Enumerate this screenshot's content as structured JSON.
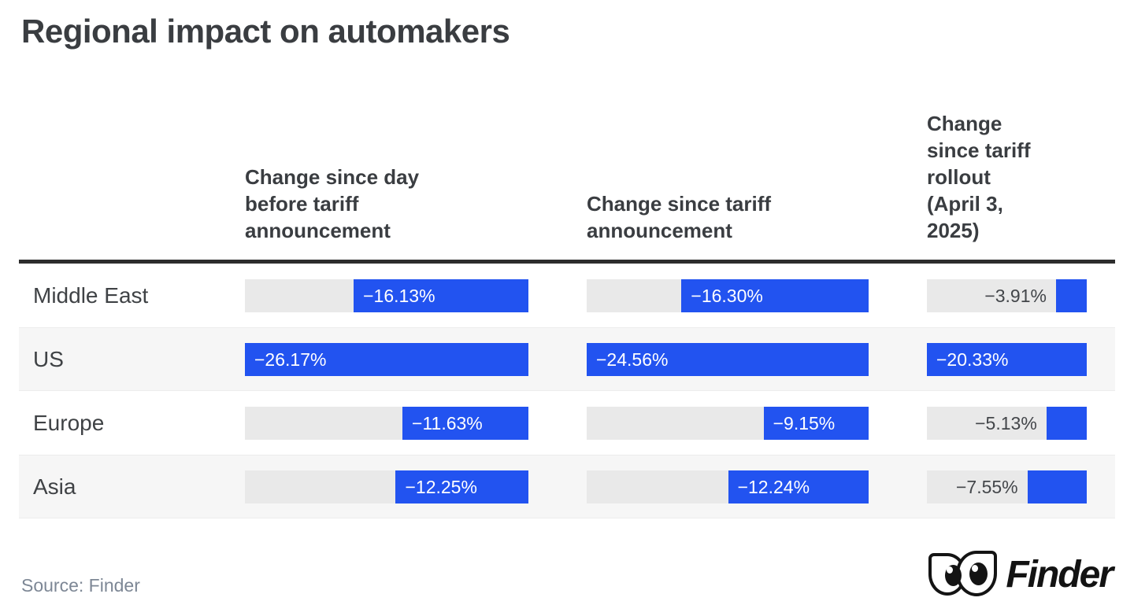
{
  "title": "Regional impact on automakers",
  "source": "Source: Finder",
  "logo": {
    "text": "Finder",
    "mark": "owl-eyes-icon"
  },
  "colors": {
    "bar_blue": "#2253f0",
    "track_gray": "#e9e9e9",
    "row_stripe": "#f6f6f6",
    "header_rule": "#2d2d2d",
    "text_dark": "#3a3d41",
    "value_outside_text": "#43464a",
    "value_inside_text": "#ffffff",
    "source_text": "#7d8795"
  },
  "chart_data": {
    "type": "bar",
    "orientation": "horizontal",
    "title": "Regional impact on automakers",
    "categories": [
      "Middle East",
      "US",
      "Europe",
      "Asia"
    ],
    "series": [
      {
        "name": "Change since day\nbefore tariff\nannouncement",
        "values": [
          -16.13,
          -26.17,
          -11.63,
          -12.25
        ]
      },
      {
        "name": "Change since tariff\nannouncement",
        "values": [
          -16.3,
          -24.56,
          -9.15,
          -12.24
        ]
      },
      {
        "name": "Change\nsince tariff\nrollout\n(April 3,\n2025)",
        "values": [
          -3.91,
          -20.33,
          -5.13,
          -7.55
        ]
      }
    ],
    "value_labels": [
      [
        "−16.13%",
        "−16.30%",
        "−3.91%"
      ],
      [
        "−26.17%",
        "−24.56%",
        "−20.33%"
      ],
      [
        "−11.63%",
        "−9.15%",
        "−5.13%"
      ],
      [
        "−12.25%",
        "−12.24%",
        "−7.55%"
      ]
    ],
    "column_max_abs": [
      26.17,
      24.56,
      20.33
    ],
    "value_format": "minus-sign + abs value + %",
    "scaling": "bar width proportional to |value| / column max, right-anchored",
    "grid": false,
    "legend": false
  }
}
